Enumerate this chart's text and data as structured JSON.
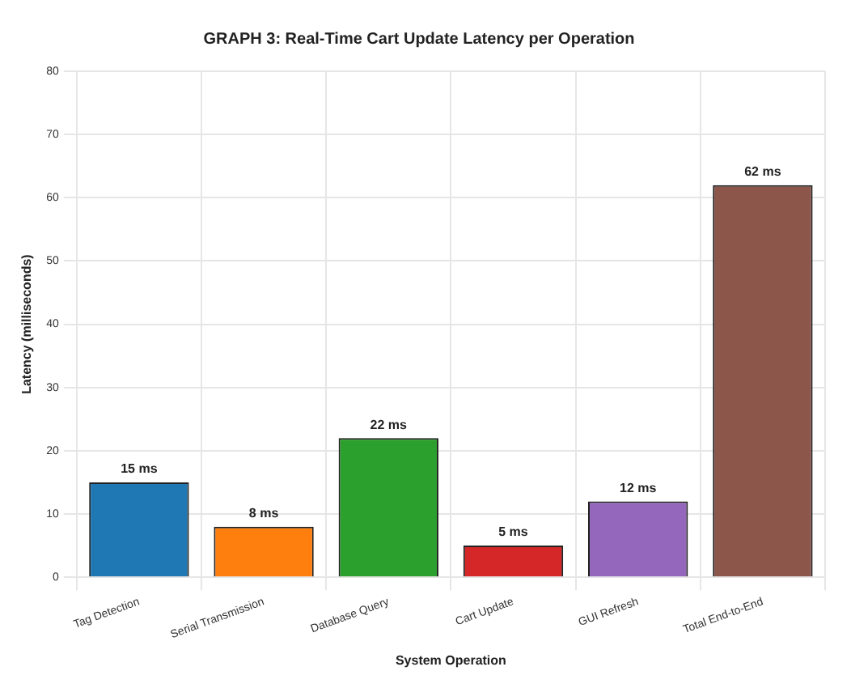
{
  "chart_data": {
    "type": "bar",
    "title": "GRAPH 3: Real-Time Cart Update Latency per Operation",
    "xlabel": "System Operation",
    "ylabel": "Latency (milliseconds)",
    "categories": [
      "Tag Detection",
      "Serial Transmission",
      "Database Query",
      "Cart Update",
      "GUI Refresh",
      "Total End-to-End"
    ],
    "values": [
      15,
      8,
      22,
      5,
      12,
      62
    ],
    "colors": [
      "#1f77b4",
      "#ff7f0e",
      "#2ca02c",
      "#d62728",
      "#9467bd",
      "#8c564b"
    ],
    "value_labels": [
      "15 ms",
      "8 ms",
      "22 ms",
      "5 ms",
      "12 ms",
      "62 ms"
    ],
    "ylim": [
      0,
      80
    ],
    "yticks": [
      0,
      10,
      20,
      30,
      40,
      50,
      60,
      70,
      80
    ],
    "grid": true
  }
}
